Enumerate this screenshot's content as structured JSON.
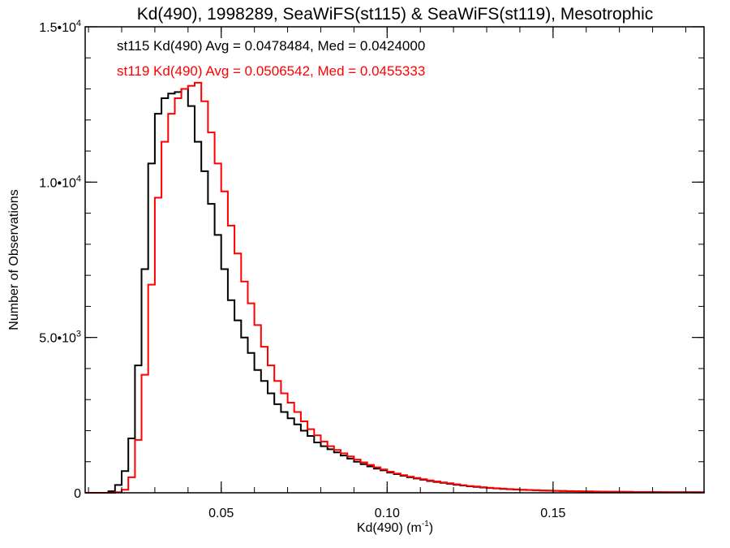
{
  "chart_data": {
    "type": "histogram",
    "title": "Kd(490), 1998289, SeaWiFS(st115) & SeaWiFS(st119), Mesotrophic",
    "xlabel_main": "Kd(490) (m",
    "xlabel_sup": "-1",
    "xlabel_end": ")",
    "ylabel": "Number of Observations",
    "xlim": [
      0.009,
      0.1955
    ],
    "ylim": [
      0,
      15000
    ],
    "grid": false,
    "x_ticks": [
      {
        "value": 0.05,
        "label": "0.05"
      },
      {
        "value": 0.1,
        "label": "0.10"
      },
      {
        "value": 0.15,
        "label": "0.15"
      }
    ],
    "x_minor_step": 0.01,
    "y_ticks": [
      {
        "value": 0,
        "label": "0",
        "sup": ""
      },
      {
        "value": 5000,
        "label": "5.0•10",
        "sup": "3"
      },
      {
        "value": 10000,
        "label": "1.0•10",
        "sup": "4"
      },
      {
        "value": 15000,
        "label": "1.5•10",
        "sup": "4"
      }
    ],
    "y_minor_step": 1000,
    "bin_start": 0.01,
    "bin_width": 0.002,
    "legend": [
      {
        "text": "st115 Kd(490) Avg = 0.0478484, Med = 0.0424000",
        "color": "#000000"
      },
      {
        "text": "st119 Kd(490) Avg = 0.0506542, Med = 0.0455333",
        "color": "#ff0000"
      }
    ],
    "legend_position": "top-left",
    "series": [
      {
        "name": "st115",
        "color": "#000000",
        "values": [
          0,
          0,
          0,
          50,
          250,
          700,
          1750,
          4100,
          7200,
          10600,
          12200,
          12700,
          12850,
          12900,
          13000,
          12450,
          11300,
          10350,
          9300,
          8300,
          7200,
          6200,
          5550,
          5000,
          4500,
          3950,
          3600,
          3200,
          2850,
          2600,
          2400,
          2200,
          2000,
          1830,
          1620,
          1500,
          1400,
          1300,
          1200,
          1100,
          1000,
          920,
          850,
          780,
          720,
          650,
          600,
          550,
          500,
          460,
          420,
          380,
          350,
          320,
          290,
          260,
          235,
          210,
          190,
          170,
          155,
          140,
          125,
          115,
          105,
          95,
          88,
          80,
          74,
          68,
          62,
          57,
          53,
          49,
          45,
          42,
          39,
          36,
          34,
          32,
          30,
          28,
          26,
          25,
          24,
          23,
          22,
          21,
          20,
          19,
          18,
          17,
          16
        ]
      },
      {
        "name": "st119",
        "color": "#ff0000",
        "values": [
          0,
          0,
          0,
          0,
          20,
          100,
          500,
          1700,
          3800,
          6700,
          9500,
          11300,
          12200,
          12700,
          13000,
          13100,
          13200,
          12600,
          11600,
          10600,
          9700,
          8600,
          7700,
          6800,
          6100,
          5400,
          4700,
          4100,
          3600,
          3200,
          2900,
          2600,
          2300,
          2050,
          1850,
          1650,
          1500,
          1380,
          1270,
          1170,
          1070,
          980,
          900,
          820,
          750,
          680,
          620,
          570,
          520,
          480,
          440,
          400,
          365,
          335,
          305,
          275,
          245,
          220,
          200,
          180,
          162,
          147,
          132,
          120,
          110,
          100,
          92,
          84,
          77,
          71,
          65,
          60,
          55,
          51,
          47,
          44,
          41,
          38,
          35,
          33,
          31,
          29,
          27,
          26,
          25,
          24,
          23,
          22,
          21,
          20,
          19,
          18,
          17
        ]
      }
    ]
  }
}
